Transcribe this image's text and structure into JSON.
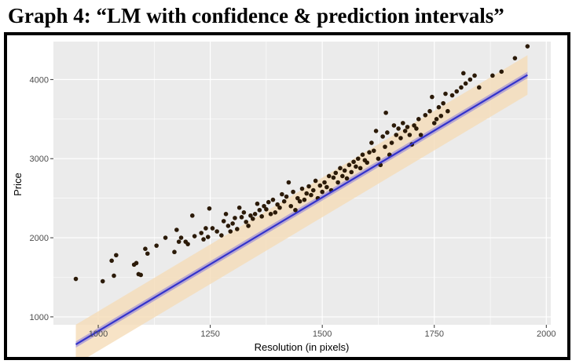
{
  "page": {
    "heading": "Graph 4: “LM with confidence & prediction intervals”"
  },
  "chart_data": {
    "type": "scatter",
    "title": "",
    "xlabel": "Resolution (in pixels)",
    "ylabel": "Price",
    "xlim": [
      900,
      2010
    ],
    "ylim": [
      900,
      4480
    ],
    "x_ticks": [
      1000,
      1250,
      1500,
      1750,
      2000
    ],
    "x_tick_labels": [
      "1000",
      "1250",
      "1500",
      "1750",
      "2000"
    ],
    "y_ticks": [
      1000,
      2000,
      3000,
      4000
    ],
    "y_tick_labels": [
      "1000",
      "2000",
      "3000",
      "4000"
    ],
    "grid": true,
    "legend": "none",
    "colors": {
      "panel": "#ebebeb",
      "grid": "#ffffff",
      "points": "#2b1a08",
      "fit_line": "#3333cc",
      "confidence_band": "#9e8fd6",
      "prediction_band": "#f5dcb8"
    },
    "fit": {
      "x_range": [
        950,
        1958
      ],
      "intercept": -2560,
      "slope": 3.38,
      "confidence_halfwidth": 40,
      "prediction_halfwidth": 250
    },
    "points": [
      [
        950,
        1480
      ],
      [
        1010,
        1450
      ],
      [
        1030,
        1710
      ],
      [
        1035,
        1520
      ],
      [
        1040,
        1780
      ],
      [
        1080,
        1660
      ],
      [
        1085,
        1680
      ],
      [
        1090,
        1540
      ],
      [
        1095,
        1530
      ],
      [
        1105,
        1860
      ],
      [
        1110,
        1800
      ],
      [
        1130,
        1900
      ],
      [
        1150,
        2000
      ],
      [
        1170,
        1820
      ],
      [
        1175,
        2100
      ],
      [
        1180,
        1950
      ],
      [
        1185,
        2000
      ],
      [
        1195,
        1950
      ],
      [
        1200,
        1920
      ],
      [
        1210,
        2280
      ],
      [
        1215,
        2020
      ],
      [
        1230,
        2060
      ],
      [
        1235,
        1980
      ],
      [
        1240,
        2120
      ],
      [
        1245,
        2010
      ],
      [
        1248,
        2370
      ],
      [
        1255,
        2120
      ],
      [
        1265,
        2080
      ],
      [
        1275,
        2030
      ],
      [
        1280,
        2210
      ],
      [
        1285,
        2300
      ],
      [
        1290,
        2150
      ],
      [
        1295,
        2080
      ],
      [
        1300,
        2180
      ],
      [
        1305,
        2250
      ],
      [
        1310,
        2110
      ],
      [
        1315,
        2380
      ],
      [
        1320,
        2260
      ],
      [
        1325,
        2320
      ],
      [
        1330,
        2200
      ],
      [
        1335,
        2150
      ],
      [
        1340,
        2280
      ],
      [
        1345,
        2240
      ],
      [
        1350,
        2300
      ],
      [
        1355,
        2430
      ],
      [
        1360,
        2350
      ],
      [
        1365,
        2270
      ],
      [
        1370,
        2400
      ],
      [
        1375,
        2360
      ],
      [
        1380,
        2450
      ],
      [
        1385,
        2300
      ],
      [
        1390,
        2480
      ],
      [
        1395,
        2320
      ],
      [
        1400,
        2420
      ],
      [
        1405,
        2380
      ],
      [
        1410,
        2550
      ],
      [
        1415,
        2460
      ],
      [
        1420,
        2520
      ],
      [
        1425,
        2700
      ],
      [
        1430,
        2400
      ],
      [
        1435,
        2580
      ],
      [
        1440,
        2350
      ],
      [
        1445,
        2500
      ],
      [
        1450,
        2460
      ],
      [
        1455,
        2620
      ],
      [
        1460,
        2480
      ],
      [
        1465,
        2560
      ],
      [
        1470,
        2650
      ],
      [
        1475,
        2540
      ],
      [
        1480,
        2600
      ],
      [
        1485,
        2720
      ],
      [
        1490,
        2500
      ],
      [
        1495,
        2660
      ],
      [
        1500,
        2580
      ],
      [
        1505,
        2700
      ],
      [
        1510,
        2640
      ],
      [
        1515,
        2780
      ],
      [
        1520,
        2600
      ],
      [
        1525,
        2760
      ],
      [
        1530,
        2820
      ],
      [
        1535,
        2700
      ],
      [
        1540,
        2880
      ],
      [
        1545,
        2780
      ],
      [
        1550,
        2850
      ],
      [
        1555,
        2750
      ],
      [
        1560,
        2920
      ],
      [
        1565,
        2830
      ],
      [
        1570,
        2960
      ],
      [
        1575,
        2900
      ],
      [
        1580,
        3000
      ],
      [
        1585,
        2880
      ],
      [
        1590,
        3050
      ],
      [
        1595,
        2980
      ],
      [
        1600,
        2950
      ],
      [
        1605,
        3080
      ],
      [
        1610,
        3200
      ],
      [
        1615,
        3100
      ],
      [
        1620,
        3350
      ],
      [
        1625,
        3000
      ],
      [
        1630,
        2920
      ],
      [
        1635,
        3280
      ],
      [
        1640,
        3150
      ],
      [
        1642,
        3580
      ],
      [
        1645,
        3330
      ],
      [
        1650,
        3050
      ],
      [
        1655,
        3200
      ],
      [
        1660,
        3420
      ],
      [
        1665,
        3300
      ],
      [
        1670,
        3380
      ],
      [
        1675,
        3260
      ],
      [
        1680,
        3450
      ],
      [
        1685,
        3350
      ],
      [
        1690,
        3400
      ],
      [
        1695,
        3300
      ],
      [
        1700,
        3180
      ],
      [
        1705,
        3420
      ],
      [
        1710,
        3380
      ],
      [
        1715,
        3500
      ],
      [
        1720,
        3300
      ],
      [
        1730,
        3550
      ],
      [
        1740,
        3600
      ],
      [
        1745,
        3780
      ],
      [
        1750,
        3450
      ],
      [
        1755,
        3500
      ],
      [
        1760,
        3650
      ],
      [
        1765,
        3540
      ],
      [
        1770,
        3700
      ],
      [
        1775,
        3820
      ],
      [
        1780,
        3600
      ],
      [
        1790,
        3800
      ],
      [
        1800,
        3850
      ],
      [
        1810,
        3900
      ],
      [
        1815,
        4080
      ],
      [
        1820,
        3950
      ],
      [
        1830,
        4000
      ],
      [
        1840,
        4050
      ],
      [
        1850,
        3900
      ],
      [
        1880,
        4050
      ],
      [
        1900,
        4100
      ],
      [
        1930,
        4270
      ],
      [
        1958,
        4420
      ]
    ]
  }
}
